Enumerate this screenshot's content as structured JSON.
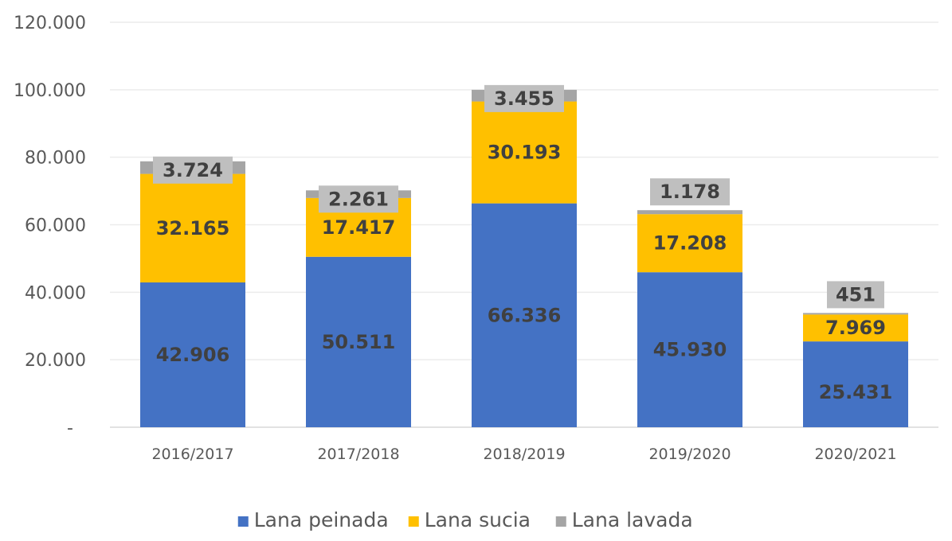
{
  "chart_data": {
    "type": "bar",
    "stacked": true,
    "categories": [
      "2016/2017",
      "2017/2018",
      "2018/2019",
      "2019/2020",
      "2020/2021"
    ],
    "series": [
      {
        "name": "Lana peinada",
        "color": "#4472C4",
        "label_color": "#404040",
        "values": [
          42906,
          50511,
          66336,
          45930,
          25431
        ],
        "labels": [
          "42.906",
          "50.511",
          "66.336",
          "45.930",
          "25.431"
        ]
      },
      {
        "name": "Lana sucia",
        "color": "#FFC000",
        "label_color": "#404040",
        "values": [
          32165,
          17417,
          30193,
          17208,
          7969
        ],
        "labels": [
          "32.165",
          "17.417",
          "30.193",
          "17.208",
          "7.969"
        ]
      },
      {
        "name": "Lana lavada",
        "color": "#A5A5A5",
        "label_color": "#404040",
        "label_box_color": "#BFBFBF",
        "values": [
          3724,
          2261,
          3455,
          1178,
          451
        ],
        "labels": [
          "3.724",
          "2.261",
          "3.455",
          "1.178",
          "451"
        ]
      }
    ],
    "y_ticks": [
      {
        "value": 0,
        "label": "-"
      },
      {
        "value": 20000,
        "label": "20.000"
      },
      {
        "value": 40000,
        "label": "40.000"
      },
      {
        "value": 60000,
        "label": "60.000"
      },
      {
        "value": 80000,
        "label": "80.000"
      },
      {
        "value": 100000,
        "label": "100.000"
      },
      {
        "value": 120000,
        "label": "120.000"
      }
    ],
    "ylim": [
      0,
      120000
    ],
    "grid": true,
    "legend_position": "bottom"
  }
}
